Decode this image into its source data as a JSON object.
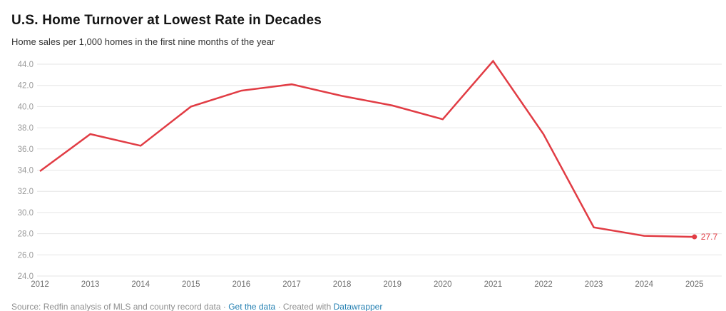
{
  "header": {
    "title": "U.S. Home Turnover at Lowest Rate in Decades",
    "subtitle": "Home sales per 1,000 homes in the first nine months of the year"
  },
  "chart_data": {
    "type": "line",
    "x": [
      2012,
      2013,
      2014,
      2015,
      2016,
      2017,
      2018,
      2019,
      2020,
      2021,
      2022,
      2023,
      2024,
      2025
    ],
    "series": [
      {
        "name": "Home sales per 1,000 homes (first nine months)",
        "values": [
          33.9,
          37.4,
          36.3,
          40.0,
          41.5,
          42.1,
          41.0,
          40.1,
          38.8,
          44.3,
          37.4,
          28.6,
          27.8,
          27.7
        ]
      }
    ],
    "end_label": "27.7",
    "title": "U.S. Home Turnover at Lowest Rate in Decades",
    "xlabel": "",
    "ylabel": "",
    "ylim": [
      24.0,
      44.0
    ],
    "ytick_step": 2.0,
    "grid": "horizontal-only",
    "legend_position": "none",
    "line_color": "#e13c44",
    "end_label_color": "#e13c44",
    "grid_color": "#e6e6e6",
    "ytick_color": "#9a9a9a",
    "xtick_color": "#6f6f6f"
  },
  "footer": {
    "source_text": "Source: Redfin analysis of MLS and county record data",
    "separator": "·",
    "get_data_link": "Get the data",
    "created_with_text": "Created with",
    "datawrapper_link": "Datawrapper",
    "link_color": "#2580b2"
  }
}
